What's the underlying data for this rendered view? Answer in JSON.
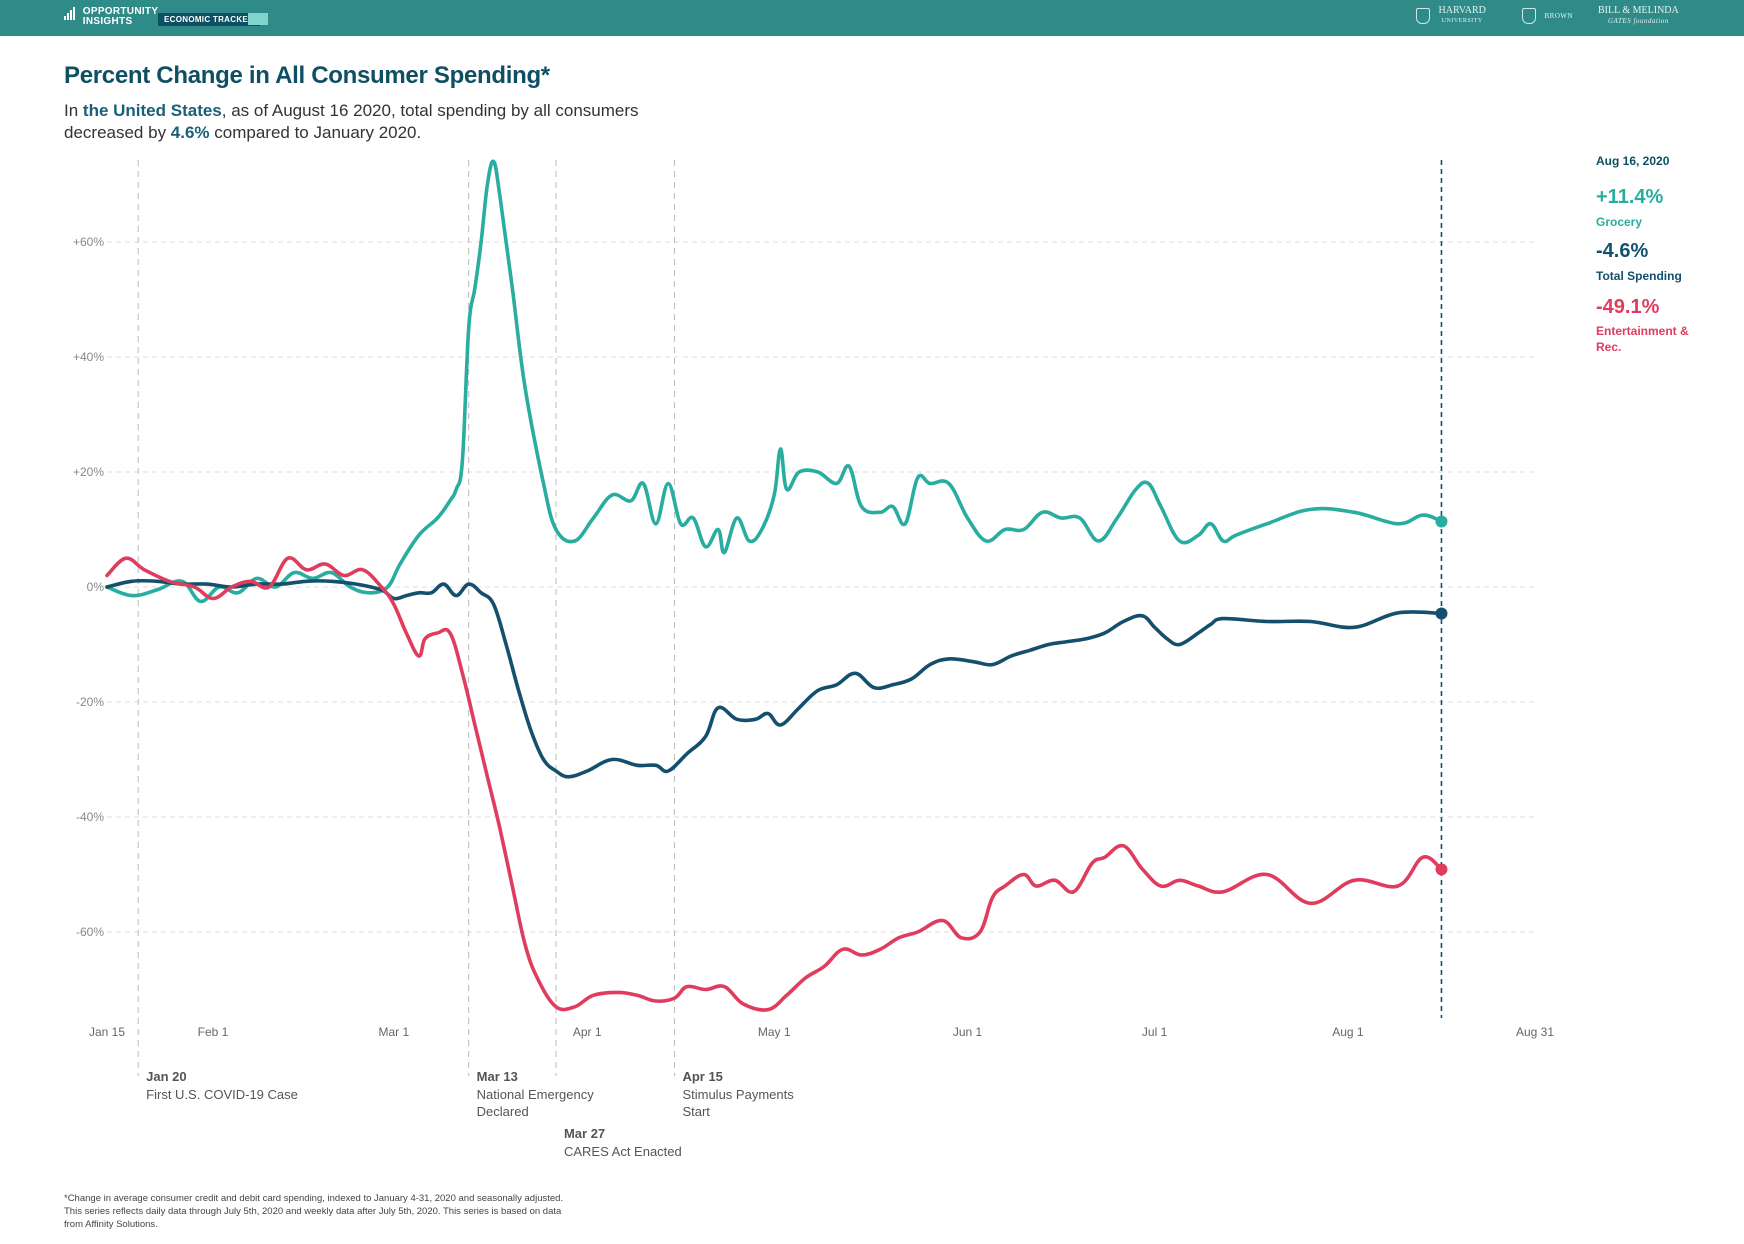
{
  "header": {
    "logo_text_1": "OPPORTUNITY",
    "logo_text_2": "INSIGHTS",
    "tracker_label": "ECONOMIC TRACKER",
    "partner_1": "HARVARD",
    "partner_1_sub": "UNIVERSITY",
    "partner_2": "BROWN",
    "partner_3": "BILL & MELINDA",
    "partner_3_sub": "GATES foundation",
    "bar_color": "#2e8b88"
  },
  "title": "Percent Change in All Consumer Spending*",
  "subtitle": {
    "p1": "In ",
    "place": "the United States",
    "p2": ", as of August 16 2020, total spending by all consumers decreased by ",
    "pct": "4.6%",
    "p3": " compared to January 2020."
  },
  "side_panel": {
    "date": "Aug 16, 2020",
    "items": [
      {
        "value": "+11.4%",
        "label": "Grocery"
      },
      {
        "value": "-4.6%",
        "label": "Total Spending"
      },
      {
        "value": "-49.1%",
        "label": "Entertainment & Rec."
      }
    ]
  },
  "chart_data": {
    "type": "line",
    "x_type": "date",
    "xlim": [
      "2020-01-15",
      "2020-08-31"
    ],
    "ylim": [
      -75,
      75
    ],
    "y_ticks": [
      60,
      40,
      20,
      0,
      -20,
      -40,
      -60
    ],
    "y_tick_labels": [
      "+60%",
      "+40%",
      "+20%",
      "0%",
      "-20%",
      "-40%",
      "-60%"
    ],
    "x_ticks": [
      {
        "date": "2020-01-15",
        "label": "Jan 15"
      },
      {
        "date": "2020-02-01",
        "label": "Feb 1"
      },
      {
        "date": "2020-03-01",
        "label": "Mar 1"
      },
      {
        "date": "2020-04-01",
        "label": "Apr 1"
      },
      {
        "date": "2020-05-01",
        "label": "May 1"
      },
      {
        "date": "2020-06-01",
        "label": "Jun 1"
      },
      {
        "date": "2020-07-01",
        "label": "Jul 1"
      },
      {
        "date": "2020-08-01",
        "label": "Aug 1"
      },
      {
        "date": "2020-08-31",
        "label": "Aug 31"
      }
    ],
    "grid": true,
    "current_marker": "2020-08-16",
    "events": [
      {
        "date": "2020-01-20",
        "label_date": "Jan 20",
        "text": [
          "First U.S. COVID-19 Case"
        ]
      },
      {
        "date": "2020-03-13",
        "label_date": "Mar 13",
        "text": [
          "National Emergency",
          "Declared"
        ]
      },
      {
        "date": "2020-03-27",
        "label_date": "Mar 27",
        "text": [
          "CARES Act Enacted"
        ]
      },
      {
        "date": "2020-04-15",
        "label_date": "Apr 15",
        "text": [
          "Stimulus Payments",
          "Start"
        ]
      }
    ],
    "series": [
      {
        "name": "Grocery",
        "color": "#29ada0",
        "points": [
          [
            "2020-01-15",
            0
          ],
          [
            "2020-01-19",
            -1.5
          ],
          [
            "2020-01-23",
            -0.5
          ],
          [
            "2020-01-27",
            1
          ],
          [
            "2020-01-30",
            -2.5
          ],
          [
            "2020-02-02",
            0
          ],
          [
            "2020-02-05",
            -1
          ],
          [
            "2020-02-08",
            1.5
          ],
          [
            "2020-02-11",
            0
          ],
          [
            "2020-02-14",
            2.5
          ],
          [
            "2020-02-17",
            1.5
          ],
          [
            "2020-02-20",
            2.5
          ],
          [
            "2020-02-23",
            0
          ],
          [
            "2020-02-26",
            -1
          ],
          [
            "2020-02-29",
            0
          ],
          [
            "2020-03-02",
            4
          ],
          [
            "2020-03-05",
            9
          ],
          [
            "2020-03-08",
            12
          ],
          [
            "2020-03-10",
            15
          ],
          [
            "2020-03-11",
            17
          ],
          [
            "2020-03-12",
            22
          ],
          [
            "2020-03-13",
            45
          ],
          [
            "2020-03-14",
            52
          ],
          [
            "2020-03-15",
            60
          ],
          [
            "2020-03-16",
            70
          ],
          [
            "2020-03-17",
            74
          ],
          [
            "2020-03-18",
            68
          ],
          [
            "2020-03-20",
            52
          ],
          [
            "2020-03-22",
            35
          ],
          [
            "2020-03-25",
            18
          ],
          [
            "2020-03-27",
            10
          ],
          [
            "2020-03-30",
            8
          ],
          [
            "2020-04-02",
            12
          ],
          [
            "2020-04-05",
            16
          ],
          [
            "2020-04-08",
            15
          ],
          [
            "2020-04-10",
            18
          ],
          [
            "2020-04-12",
            11
          ],
          [
            "2020-04-14",
            18
          ],
          [
            "2020-04-16",
            11
          ],
          [
            "2020-04-18",
            12
          ],
          [
            "2020-04-20",
            7
          ],
          [
            "2020-04-22",
            10
          ],
          [
            "2020-04-23",
            6
          ],
          [
            "2020-04-25",
            12
          ],
          [
            "2020-04-27",
            8
          ],
          [
            "2020-04-29",
            10
          ],
          [
            "2020-05-01",
            16
          ],
          [
            "2020-05-02",
            24
          ],
          [
            "2020-05-03",
            17
          ],
          [
            "2020-05-05",
            20
          ],
          [
            "2020-05-08",
            20
          ],
          [
            "2020-05-11",
            18
          ],
          [
            "2020-05-13",
            21
          ],
          [
            "2020-05-15",
            14
          ],
          [
            "2020-05-18",
            13
          ],
          [
            "2020-05-20",
            14
          ],
          [
            "2020-05-22",
            11
          ],
          [
            "2020-05-24",
            19
          ],
          [
            "2020-05-26",
            18
          ],
          [
            "2020-05-29",
            18
          ],
          [
            "2020-06-01",
            12
          ],
          [
            "2020-06-04",
            8
          ],
          [
            "2020-06-07",
            10
          ],
          [
            "2020-06-10",
            10
          ],
          [
            "2020-06-13",
            13
          ],
          [
            "2020-06-16",
            12
          ],
          [
            "2020-06-19",
            12
          ],
          [
            "2020-06-22",
            8
          ],
          [
            "2020-06-25",
            12
          ],
          [
            "2020-06-28",
            17
          ],
          [
            "2020-06-30",
            18
          ],
          [
            "2020-07-02",
            14
          ],
          [
            "2020-07-05",
            8
          ],
          [
            "2020-07-08",
            9
          ],
          [
            "2020-07-10",
            11
          ],
          [
            "2020-07-12",
            8
          ],
          [
            "2020-07-14",
            9
          ],
          [
            "2020-07-19",
            11
          ],
          [
            "2020-07-26",
            13.5
          ],
          [
            "2020-08-02",
            13
          ],
          [
            "2020-08-09",
            11
          ],
          [
            "2020-08-13",
            12.5
          ],
          [
            "2020-08-16",
            11.4
          ]
        ]
      },
      {
        "name": "Total Spending",
        "color": "#14506e",
        "points": [
          [
            "2020-01-15",
            0
          ],
          [
            "2020-01-19",
            1
          ],
          [
            "2020-01-23",
            1
          ],
          [
            "2020-01-27",
            0.5
          ],
          [
            "2020-01-31",
            0.5
          ],
          [
            "2020-02-04",
            0
          ],
          [
            "2020-02-08",
            0.5
          ],
          [
            "2020-02-12",
            0.5
          ],
          [
            "2020-02-16",
            1
          ],
          [
            "2020-02-20",
            1
          ],
          [
            "2020-02-24",
            0.5
          ],
          [
            "2020-02-28",
            -0.5
          ],
          [
            "2020-03-01",
            -2
          ],
          [
            "2020-03-03",
            -1.5
          ],
          [
            "2020-03-05",
            -1
          ],
          [
            "2020-03-07",
            -1
          ],
          [
            "2020-03-09",
            0.5
          ],
          [
            "2020-03-11",
            -1.5
          ],
          [
            "2020-03-13",
            0.5
          ],
          [
            "2020-03-15",
            -1
          ],
          [
            "2020-03-17",
            -3
          ],
          [
            "2020-03-19",
            -10
          ],
          [
            "2020-03-21",
            -18
          ],
          [
            "2020-03-23",
            -25
          ],
          [
            "2020-03-25",
            -30
          ],
          [
            "2020-03-27",
            -32
          ],
          [
            "2020-03-29",
            -33
          ],
          [
            "2020-04-01",
            -32
          ],
          [
            "2020-04-05",
            -30
          ],
          [
            "2020-04-09",
            -31
          ],
          [
            "2020-04-12",
            -31
          ],
          [
            "2020-04-14",
            -32
          ],
          [
            "2020-04-17",
            -29
          ],
          [
            "2020-04-20",
            -26
          ],
          [
            "2020-04-22",
            -21
          ],
          [
            "2020-04-25",
            -23
          ],
          [
            "2020-04-28",
            -23
          ],
          [
            "2020-04-30",
            -22
          ],
          [
            "2020-05-02",
            -24
          ],
          [
            "2020-05-05",
            -21
          ],
          [
            "2020-05-08",
            -18
          ],
          [
            "2020-05-11",
            -17
          ],
          [
            "2020-05-14",
            -15
          ],
          [
            "2020-05-17",
            -17.5
          ],
          [
            "2020-05-20",
            -17
          ],
          [
            "2020-05-23",
            -16
          ],
          [
            "2020-05-26",
            -13.5
          ],
          [
            "2020-05-29",
            -12.5
          ],
          [
            "2020-06-02",
            -13
          ],
          [
            "2020-06-05",
            -13.5
          ],
          [
            "2020-06-08",
            -12
          ],
          [
            "2020-06-11",
            -11
          ],
          [
            "2020-06-14",
            -10
          ],
          [
            "2020-06-17",
            -9.5
          ],
          [
            "2020-06-20",
            -9
          ],
          [
            "2020-06-23",
            -8
          ],
          [
            "2020-06-26",
            -6
          ],
          [
            "2020-06-29",
            -5
          ],
          [
            "2020-07-01",
            -7
          ],
          [
            "2020-07-03",
            -9
          ],
          [
            "2020-07-05",
            -10
          ],
          [
            "2020-07-08",
            -8
          ],
          [
            "2020-07-10",
            -6.5
          ],
          [
            "2020-07-12",
            -5.5
          ],
          [
            "2020-07-19",
            -6
          ],
          [
            "2020-07-26",
            -6
          ],
          [
            "2020-08-02",
            -7
          ],
          [
            "2020-08-09",
            -4.5
          ],
          [
            "2020-08-16",
            -4.6
          ]
        ]
      },
      {
        "name": "Entertainment & Rec.",
        "color": "#e03c5e",
        "points": [
          [
            "2020-01-15",
            2
          ],
          [
            "2020-01-18",
            5
          ],
          [
            "2020-01-21",
            3
          ],
          [
            "2020-01-25",
            1
          ],
          [
            "2020-01-29",
            0
          ],
          [
            "2020-02-01",
            -2
          ],
          [
            "2020-02-04",
            0
          ],
          [
            "2020-02-07",
            1
          ],
          [
            "2020-02-10",
            0
          ],
          [
            "2020-02-13",
            5
          ],
          [
            "2020-02-16",
            3
          ],
          [
            "2020-02-19",
            4
          ],
          [
            "2020-02-22",
            2
          ],
          [
            "2020-02-25",
            3
          ],
          [
            "2020-02-28",
            0
          ],
          [
            "2020-03-01",
            -3
          ],
          [
            "2020-03-03",
            -8
          ],
          [
            "2020-03-05",
            -12
          ],
          [
            "2020-03-06",
            -9
          ],
          [
            "2020-03-08",
            -8
          ],
          [
            "2020-03-10",
            -8
          ],
          [
            "2020-03-12",
            -15
          ],
          [
            "2020-03-14",
            -24
          ],
          [
            "2020-03-16",
            -33
          ],
          [
            "2020-03-18",
            -42
          ],
          [
            "2020-03-20",
            -52
          ],
          [
            "2020-03-22",
            -62
          ],
          [
            "2020-03-24",
            -68
          ],
          [
            "2020-03-27",
            -73
          ],
          [
            "2020-03-30",
            -73
          ],
          [
            "2020-04-02",
            -71
          ],
          [
            "2020-04-06",
            -70.5
          ],
          [
            "2020-04-09",
            -71
          ],
          [
            "2020-04-12",
            -72
          ],
          [
            "2020-04-15",
            -71.5
          ],
          [
            "2020-04-17",
            -69.5
          ],
          [
            "2020-04-20",
            -70
          ],
          [
            "2020-04-23",
            -69.5
          ],
          [
            "2020-04-26",
            -72.5
          ],
          [
            "2020-04-30",
            -73.5
          ],
          [
            "2020-05-03",
            -71
          ],
          [
            "2020-05-06",
            -68
          ],
          [
            "2020-05-09",
            -66
          ],
          [
            "2020-05-12",
            -63
          ],
          [
            "2020-05-15",
            -64
          ],
          [
            "2020-05-18",
            -63
          ],
          [
            "2020-05-21",
            -61
          ],
          [
            "2020-05-24",
            -60
          ],
          [
            "2020-05-28",
            -58
          ],
          [
            "2020-05-31",
            -61
          ],
          [
            "2020-06-03",
            -60
          ],
          [
            "2020-06-05",
            -54
          ],
          [
            "2020-06-07",
            -52
          ],
          [
            "2020-06-10",
            -50
          ],
          [
            "2020-06-12",
            -52
          ],
          [
            "2020-06-15",
            -51
          ],
          [
            "2020-06-18",
            -53
          ],
          [
            "2020-06-21",
            -48
          ],
          [
            "2020-06-23",
            -47
          ],
          [
            "2020-06-26",
            -45
          ],
          [
            "2020-06-29",
            -49
          ],
          [
            "2020-07-02",
            -52
          ],
          [
            "2020-07-05",
            -51
          ],
          [
            "2020-07-08",
            -52
          ],
          [
            "2020-07-12",
            -53
          ],
          [
            "2020-07-19",
            -50
          ],
          [
            "2020-07-26",
            -55
          ],
          [
            "2020-08-02",
            -51
          ],
          [
            "2020-08-09",
            -52
          ],
          [
            "2020-08-13",
            -47
          ],
          [
            "2020-08-16",
            -49.1
          ]
        ]
      }
    ]
  },
  "footnote": [
    "*Change in average consumer credit and debit card spending, indexed to January 4-31, 2020 and seasonally adjusted.",
    "This series reflects daily data through July 5th, 2020 and weekly data after July 5th, 2020. This series is based on data",
    "from Affinity Solutions."
  ]
}
